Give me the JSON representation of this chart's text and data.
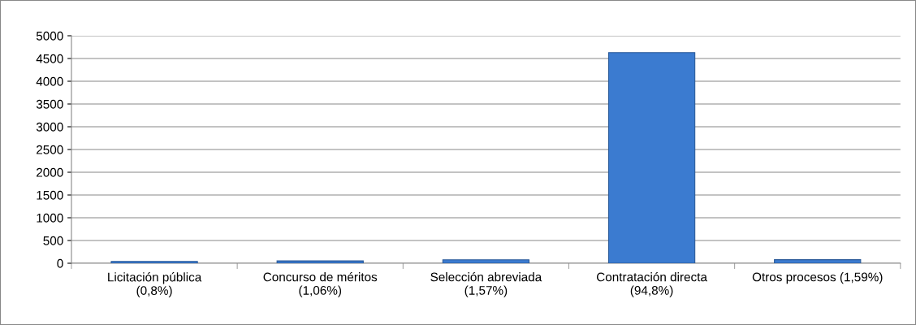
{
  "chart_data": {
    "type": "bar",
    "categories": [
      "Licitación pública\n(0,8%)",
      "Concurso de méritos\n(1,06%)",
      "Selección abreviada\n(1,57%)",
      "Contratación directa\n(94,8%)",
      "Otros procesos (1,59%)"
    ],
    "values": [
      39,
      52,
      77,
      4630,
      78
    ],
    "color": "#3b7bd0",
    "ylim": [
      0,
      5000
    ],
    "yticks": [
      0,
      500,
      1000,
      1500,
      2000,
      2500,
      3000,
      3500,
      4000,
      4500,
      5000
    ],
    "grid": "y",
    "legend": false
  }
}
